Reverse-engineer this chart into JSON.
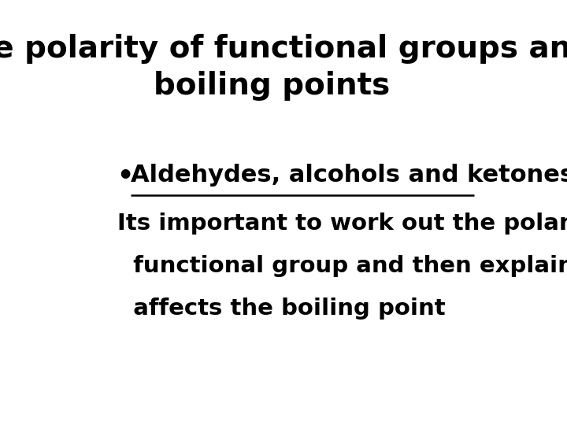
{
  "background_color": "#ffffff",
  "title_line1": "The polarity of functional groups and",
  "title_line2": "boiling points",
  "title_fontsize": 28,
  "title_color": "#000000",
  "bullet_text": "Aldehydes, alcohols and ketones",
  "bullet_fontsize": 22,
  "bullet_color": "#000000",
  "body_lines": [
    "Its important to work out the polarity of",
    "  functional group and then explain how it",
    "  affects the boiling point"
  ],
  "body_fontsize": 21,
  "body_color": "#000000"
}
